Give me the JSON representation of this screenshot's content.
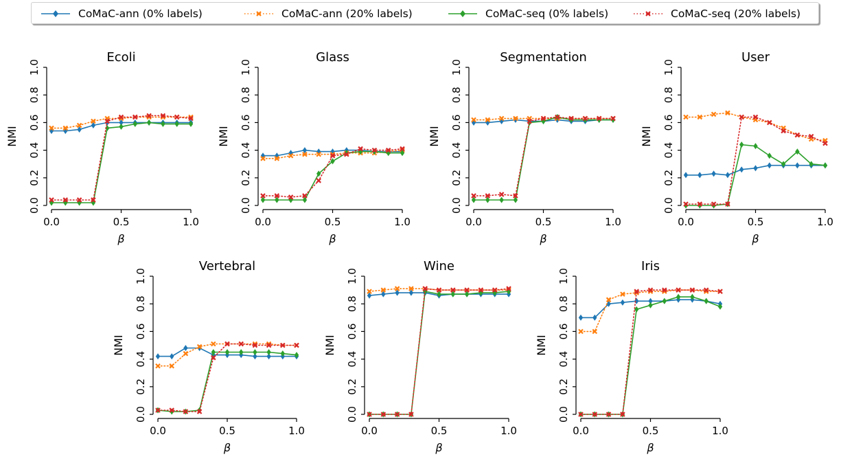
{
  "legend": {
    "items": [
      {
        "label": "CoMaC-ann (0% labels)",
        "color": "#1f77b4",
        "line": "solid",
        "marker": "diamond"
      },
      {
        "label": "CoMaC-ann (20% labels)",
        "color": "#ff7f0e",
        "line": "dotted",
        "marker": "x"
      },
      {
        "label": "CoMaC-seq (0% labels)",
        "color": "#2ca02c",
        "line": "solid",
        "marker": "diamond"
      },
      {
        "label": "CoMaC-seq (20% labels)",
        "color": "#d62728",
        "line": "dotted",
        "marker": "x"
      }
    ]
  },
  "chart_data": [
    {
      "type": "line",
      "title": "Ecoli",
      "xlabel": "β",
      "ylabel": "NMI",
      "xlim": [
        0,
        1
      ],
      "ylim": [
        0,
        1
      ],
      "xticks": [
        "0.0",
        "0.5",
        "1.0"
      ],
      "yticks": [
        "0.0",
        "0.2",
        "0.4",
        "0.6",
        "0.8",
        "1.0"
      ],
      "x": [
        0,
        0.1,
        0.2,
        0.3,
        0.4,
        0.5,
        0.6,
        0.7,
        0.8,
        0.9,
        1.0
      ],
      "series": [
        {
          "name": "CoMaC-ann (0% labels)",
          "values": [
            0.54,
            0.54,
            0.55,
            0.58,
            0.6,
            0.6,
            0.6,
            0.6,
            0.6,
            0.6,
            0.6
          ]
        },
        {
          "name": "CoMaC-ann (20% labels)",
          "values": [
            0.56,
            0.56,
            0.58,
            0.61,
            0.63,
            0.63,
            0.64,
            0.64,
            0.64,
            0.64,
            0.64
          ]
        },
        {
          "name": "CoMaC-seq (0% labels)",
          "values": [
            0.02,
            0.02,
            0.02,
            0.02,
            0.56,
            0.57,
            0.59,
            0.6,
            0.59,
            0.59,
            0.59
          ]
        },
        {
          "name": "CoMaC-seq (20% labels)",
          "values": [
            0.04,
            0.04,
            0.04,
            0.04,
            0.61,
            0.64,
            0.64,
            0.65,
            0.65,
            0.64,
            0.63
          ]
        }
      ]
    },
    {
      "type": "line",
      "title": "Glass",
      "xlabel": "β",
      "ylabel": "NMI",
      "xlim": [
        0,
        1
      ],
      "ylim": [
        0,
        1
      ],
      "xticks": [
        "0.0",
        "0.5",
        "1.0"
      ],
      "yticks": [
        "0.0",
        "0.2",
        "0.4",
        "0.6",
        "0.8",
        "1.0"
      ],
      "x": [
        0,
        0.1,
        0.2,
        0.3,
        0.4,
        0.5,
        0.6,
        0.7,
        0.8,
        0.9,
        1.0
      ],
      "series": [
        {
          "name": "CoMaC-ann (0% labels)",
          "values": [
            0.36,
            0.36,
            0.38,
            0.4,
            0.39,
            0.39,
            0.4,
            0.4,
            0.39,
            0.39,
            0.39
          ]
        },
        {
          "name": "CoMaC-ann (20% labels)",
          "values": [
            0.34,
            0.34,
            0.36,
            0.37,
            0.37,
            0.37,
            0.38,
            0.38,
            0.38,
            0.39,
            0.4
          ]
        },
        {
          "name": "CoMaC-seq (0% labels)",
          "values": [
            0.04,
            0.04,
            0.04,
            0.04,
            0.23,
            0.32,
            0.38,
            0.39,
            0.39,
            0.38,
            0.38
          ]
        },
        {
          "name": "CoMaC-seq (20% labels)",
          "values": [
            0.07,
            0.07,
            0.06,
            0.07,
            0.18,
            0.36,
            0.37,
            0.41,
            0.4,
            0.4,
            0.41
          ]
        }
      ]
    },
    {
      "type": "line",
      "title": "Segmentation",
      "xlabel": "β",
      "ylabel": "NMI",
      "xlim": [
        0,
        1
      ],
      "ylim": [
        0,
        1
      ],
      "xticks": [
        "0.0",
        "0.5",
        "1.0"
      ],
      "yticks": [
        "0.0",
        "0.2",
        "0.4",
        "0.6",
        "0.8",
        "1.0"
      ],
      "x": [
        0,
        0.1,
        0.2,
        0.3,
        0.4,
        0.5,
        0.6,
        0.7,
        0.8,
        0.9,
        1.0
      ],
      "series": [
        {
          "name": "CoMaC-ann (0% labels)",
          "values": [
            0.6,
            0.6,
            0.61,
            0.62,
            0.61,
            0.61,
            0.62,
            0.61,
            0.61,
            0.62,
            0.62
          ]
        },
        {
          "name": "CoMaC-ann (20% labels)",
          "values": [
            0.62,
            0.62,
            0.63,
            0.63,
            0.63,
            0.63,
            0.63,
            0.63,
            0.63,
            0.63,
            0.63
          ]
        },
        {
          "name": "CoMaC-seq (0% labels)",
          "values": [
            0.04,
            0.04,
            0.04,
            0.04,
            0.6,
            0.61,
            0.64,
            0.62,
            0.62,
            0.62,
            0.62
          ]
        },
        {
          "name": "CoMaC-seq (20% labels)",
          "values": [
            0.07,
            0.07,
            0.08,
            0.07,
            0.61,
            0.63,
            0.64,
            0.63,
            0.63,
            0.63,
            0.63
          ]
        }
      ]
    },
    {
      "type": "line",
      "title": "User",
      "xlabel": "β",
      "ylabel": "NMI",
      "xlim": [
        0,
        1
      ],
      "ylim": [
        0,
        1
      ],
      "xticks": [
        "0.0",
        "0.5",
        "1.0"
      ],
      "yticks": [
        "0.0",
        "0.2",
        "0.4",
        "0.6",
        "0.8",
        "1.0"
      ],
      "x": [
        0,
        0.1,
        0.2,
        0.3,
        0.4,
        0.5,
        0.6,
        0.7,
        0.8,
        0.9,
        1.0
      ],
      "series": [
        {
          "name": "CoMaC-ann (0% labels)",
          "values": [
            0.22,
            0.22,
            0.23,
            0.22,
            0.26,
            0.27,
            0.29,
            0.29,
            0.29,
            0.29,
            0.29
          ]
        },
        {
          "name": "CoMaC-ann (20% labels)",
          "values": [
            0.64,
            0.64,
            0.66,
            0.67,
            0.64,
            0.62,
            0.6,
            0.56,
            0.51,
            0.48,
            0.47
          ]
        },
        {
          "name": "CoMaC-seq (0% labels)",
          "values": [
            0.0,
            0.0,
            0.0,
            0.01,
            0.44,
            0.43,
            0.36,
            0.3,
            0.39,
            0.3,
            0.29
          ]
        },
        {
          "name": "CoMaC-seq (20% labels)",
          "values": [
            0.01,
            0.01,
            0.01,
            0.01,
            0.64,
            0.64,
            0.6,
            0.54,
            0.51,
            0.5,
            0.45
          ]
        }
      ]
    },
    {
      "type": "line",
      "title": "Vertebral",
      "xlabel": "β",
      "ylabel": "NMI",
      "xlim": [
        0,
        1
      ],
      "ylim": [
        0,
        1
      ],
      "xticks": [
        "0.0",
        "0.5",
        "1.0"
      ],
      "yticks": [
        "0.0",
        "0.2",
        "0.4",
        "0.6",
        "0.8",
        "1.0"
      ],
      "x": [
        0,
        0.1,
        0.2,
        0.3,
        0.4,
        0.5,
        0.6,
        0.7,
        0.8,
        0.9,
        1.0
      ],
      "series": [
        {
          "name": "CoMaC-ann (0% labels)",
          "values": [
            0.42,
            0.42,
            0.48,
            0.48,
            0.43,
            0.43,
            0.43,
            0.42,
            0.42,
            0.42,
            0.42
          ]
        },
        {
          "name": "CoMaC-ann (20% labels)",
          "values": [
            0.35,
            0.35,
            0.44,
            0.49,
            0.51,
            0.51,
            0.51,
            0.51,
            0.51,
            0.5,
            0.5
          ]
        },
        {
          "name": "CoMaC-seq (0% labels)",
          "values": [
            0.03,
            0.02,
            0.02,
            0.03,
            0.45,
            0.45,
            0.45,
            0.45,
            0.45,
            0.44,
            0.43
          ]
        },
        {
          "name": "CoMaC-seq (20% labels)",
          "values": [
            0.03,
            0.03,
            0.02,
            0.02,
            0.41,
            0.51,
            0.51,
            0.5,
            0.5,
            0.5,
            0.5
          ]
        }
      ]
    },
    {
      "type": "line",
      "title": "Wine",
      "xlabel": "β",
      "ylabel": "NMI",
      "xlim": [
        0,
        1
      ],
      "ylim": [
        0,
        1
      ],
      "xticks": [
        "0.0",
        "0.5",
        "1.0"
      ],
      "yticks": [
        "0.0",
        "0.2",
        "0.4",
        "0.6",
        "0.8",
        "1.0"
      ],
      "x": [
        0,
        0.1,
        0.2,
        0.3,
        0.4,
        0.5,
        0.6,
        0.7,
        0.8,
        0.9,
        1.0
      ],
      "series": [
        {
          "name": "CoMaC-ann (0% labels)",
          "values": [
            0.86,
            0.87,
            0.88,
            0.88,
            0.88,
            0.86,
            0.87,
            0.87,
            0.87,
            0.87,
            0.87
          ]
        },
        {
          "name": "CoMaC-ann (20% labels)",
          "values": [
            0.89,
            0.9,
            0.91,
            0.91,
            0.91,
            0.9,
            0.9,
            0.9,
            0.9,
            0.9,
            0.9
          ]
        },
        {
          "name": "CoMaC-seq (0% labels)",
          "values": [
            0.0,
            0.0,
            0.0,
            0.0,
            0.89,
            0.87,
            0.87,
            0.87,
            0.88,
            0.88,
            0.89
          ]
        },
        {
          "name": "CoMaC-seq (20% labels)",
          "values": [
            0.0,
            0.0,
            0.0,
            0.0,
            0.91,
            0.9,
            0.9,
            0.9,
            0.9,
            0.9,
            0.91
          ]
        }
      ]
    },
    {
      "type": "line",
      "title": "Iris",
      "xlabel": "β",
      "ylabel": "NMI",
      "xlim": [
        0,
        1
      ],
      "ylim": [
        0,
        1
      ],
      "xticks": [
        "0.0",
        "0.5",
        "1.0"
      ],
      "yticks": [
        "0.0",
        "0.2",
        "0.4",
        "0.6",
        "0.8",
        "1.0"
      ],
      "x": [
        0,
        0.1,
        0.2,
        0.3,
        0.4,
        0.5,
        0.6,
        0.7,
        0.8,
        0.9,
        1.0
      ],
      "series": [
        {
          "name": "CoMaC-ann (0% labels)",
          "values": [
            0.7,
            0.7,
            0.8,
            0.81,
            0.82,
            0.82,
            0.82,
            0.83,
            0.83,
            0.82,
            0.8
          ]
        },
        {
          "name": "CoMaC-ann (20% labels)",
          "values": [
            0.6,
            0.6,
            0.83,
            0.87,
            0.88,
            0.89,
            0.89,
            0.9,
            0.9,
            0.89,
            0.89
          ]
        },
        {
          "name": "CoMaC-seq (0% labels)",
          "values": [
            0.0,
            0.0,
            0.0,
            0.0,
            0.76,
            0.79,
            0.82,
            0.85,
            0.85,
            0.82,
            0.78
          ]
        },
        {
          "name": "CoMaC-seq (20% labels)",
          "values": [
            0.0,
            0.0,
            0.0,
            0.0,
            0.89,
            0.9,
            0.9,
            0.9,
            0.9,
            0.9,
            0.89
          ]
        }
      ]
    }
  ]
}
